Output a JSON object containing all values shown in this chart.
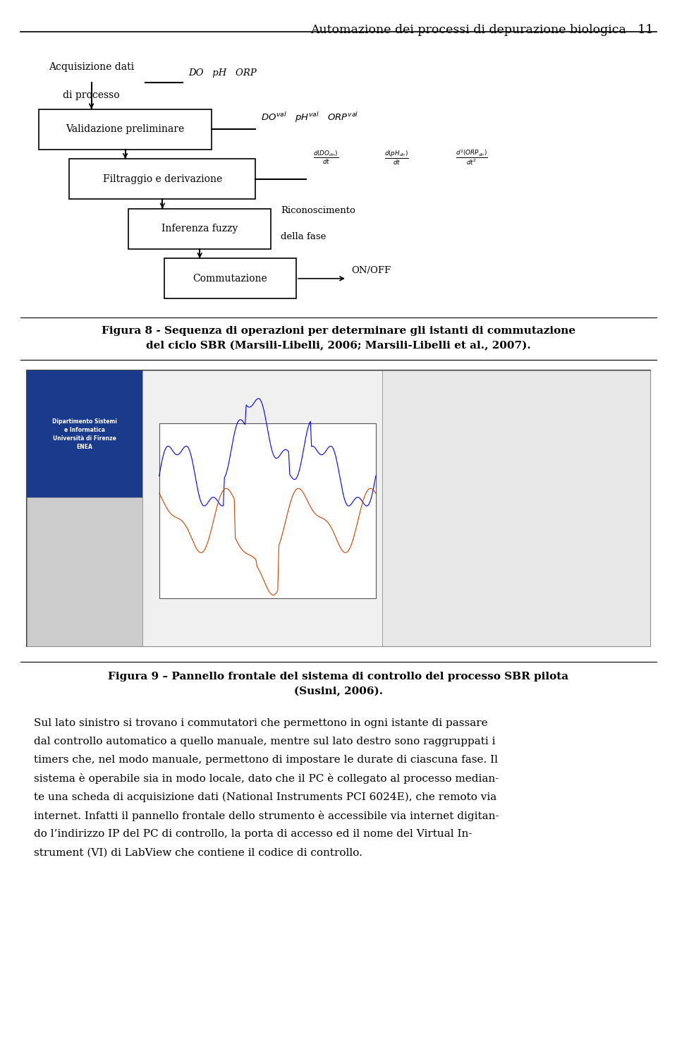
{
  "page_title": "Automazione dei processi di depurazione biologica",
  "page_number": "11",
  "figure_label_8_line1": "Figura 8 - Sequenza di operazioni per determinare gli istanti di commutazione",
  "figure_label_8_line2": "del ciclo SBR (Marsili-Libelli, 2006; Marsili-Libelli et al., 2007).",
  "figure_label_9_line1": "Figura 9 – Pannello frontale del sistema di controllo del processo SBR pilota",
  "figure_label_9_line2": "(Susini, 2006).",
  "body_text_lines": [
    "Sul lato sinistro si trovano i commutatori che permettono in ogni istante di passare",
    "dal controllo automatico a quello manuale, mentre sul lato destro sono raggruppati i",
    "timers che, nel modo manuale, permettono di impostare le durate di ciascuna fase. Il",
    "sistema è operabile sia in modo locale, dato che il PC è collegato al processo median-",
    "te una scheda di acquisizione dati (National Instruments PCI 6024E), che remoto via",
    "internet. Infatti il pannello frontale dello strumento è accessibile via internet digitan-",
    "do l’indirizzo IP del PC di controllo, la porta di accesso ed il nome del Virtual In-",
    "strument (VI) di LabView che contiene il codice di controllo."
  ],
  "bg_color": "#ffffff",
  "text_color": "#000000",
  "acq_label_line1": "Acquisizione dati",
  "acq_label_line2": "di processo",
  "acq_side_label": "DO   pH   ORP",
  "val_label": "Validazione preliminare",
  "val_side_label_math": "$DO^{val}$   $pH^{val}$   $ORP^{val}$",
  "filt_label": "Filtraggio e derivazione",
  "filt_side1": "$\\frac{d(DO_{dn})}{dt}$",
  "filt_side2": "$\\frac{d(pH_{dn})}{dt}$",
  "filt_side3": "$\\frac{d^2(ORP_{dn})}{dt^2}$",
  "inf_label": "Inferenza fuzzy",
  "inf_side_line1": "Riconoscimento",
  "inf_side_line2": "della fase",
  "comm_label": "Commutazione",
  "comm_side": "ON/OFF",
  "blue_header_text": "Dipartimento Sistemi\ne Informatica\nUniversità di Firenze\nENEA"
}
